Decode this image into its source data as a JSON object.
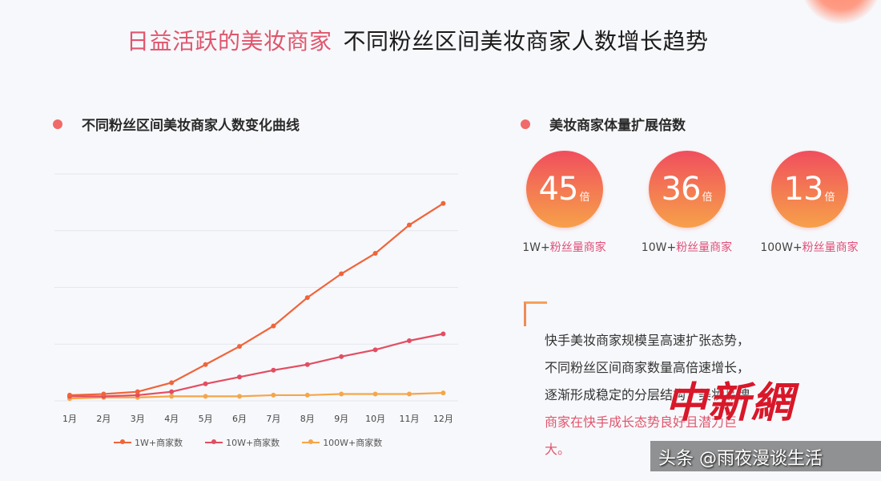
{
  "title": {
    "highlight": "日益活跃的美妆商家",
    "main": "不同粉丝区间美妆商家人数增长趋势"
  },
  "left_section": {
    "heading": "不同粉丝区间美妆商家人数变化曲线"
  },
  "right_section": {
    "heading": "美妆商家体量扩展倍数",
    "badges": [
      {
        "value": "45",
        "unit": "倍",
        "label_prefix": "1W+",
        "label_suffix": "粉丝量商家"
      },
      {
        "value": "36",
        "unit": "倍",
        "label_prefix": "10W+",
        "label_suffix": "粉丝量商家"
      },
      {
        "value": "13",
        "unit": "倍",
        "label_prefix": "100W+",
        "label_suffix": "粉丝量商家"
      }
    ],
    "quote": {
      "line1": "快手美妆商家规模呈高速扩张态势，",
      "line2": "不同粉丝区间商家数量高倍速增长，",
      "line3": "逐渐形成稳定的分层结构，美妆品牌",
      "line4": "商家在快手成长态势良好且潜力巨",
      "line5": "大。"
    }
  },
  "watermark": {
    "logo": "中新網",
    "caption": "头条 @雨夜漫谈生活"
  },
  "colors": {
    "accent_pink": "#e0566d",
    "series_1w": "#f0643a",
    "series_10w": "#e34d62",
    "series_100w": "#f5a64a",
    "badge_top": "#f04e5e",
    "badge_bottom": "#f6a04a"
  },
  "chart_data": {
    "type": "line",
    "title": "不同粉丝区间美妆商家人数变化曲线",
    "xlabel": "",
    "ylabel": "",
    "categories": [
      "1月",
      "2月",
      "3月",
      "4月",
      "5月",
      "6月",
      "7月",
      "8月",
      "9月",
      "10月",
      "11月",
      "12月"
    ],
    "series": [
      {
        "name": "1W+商家数",
        "values": [
          2.5,
          3,
          4,
          8,
          16,
          24,
          33,
          45.5,
          56,
          65,
          77.5,
          87
        ]
      },
      {
        "name": "10W+商家数",
        "values": [
          2,
          2,
          2.5,
          4,
          7.5,
          10.5,
          13.5,
          16,
          19.5,
          22.5,
          26.5,
          29.5
        ]
      },
      {
        "name": "100W+商家数",
        "values": [
          1,
          1.5,
          1.5,
          2,
          2,
          2,
          2.5,
          2.5,
          3,
          3,
          3,
          3.5
        ]
      }
    ],
    "ylim": [
      0,
      100
    ],
    "grid": true,
    "y_tick_labels_visible": false,
    "legend_position": "bottom"
  }
}
